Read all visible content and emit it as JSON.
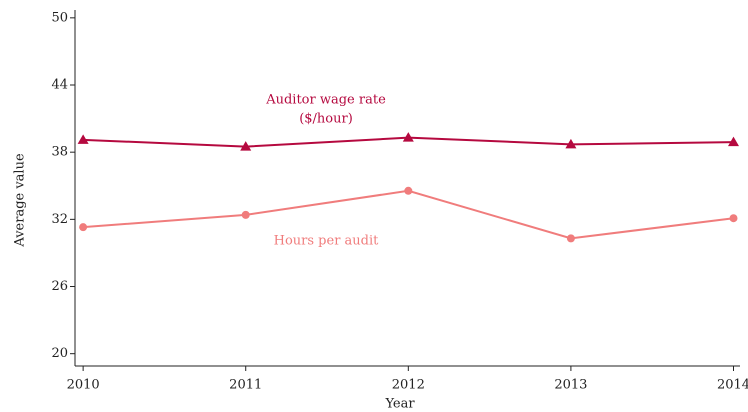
{
  "chart_data": {
    "type": "line",
    "x_label": "Year",
    "y_label": "Average value",
    "x": [
      2010,
      2011,
      2012,
      2013,
      2014
    ],
    "series": [
      {
        "name": "Auditor wage rate ($/hour)",
        "color": "#b5093f",
        "marker": "triangle",
        "values": [
          39.1,
          38.5,
          39.3,
          38.7,
          38.9
        ]
      },
      {
        "name": "Hours per audit",
        "color": "#f07c7c",
        "marker": "circle",
        "values": [
          31.3,
          32.4,
          34.55,
          30.3,
          32.1
        ]
      }
    ],
    "annotations": [
      "Auditor wage rate",
      "($/hour)",
      "Hours per audit"
    ],
    "xlim": [
      2009.95,
      2014.04
    ],
    "ylim": [
      18.9,
      50.7
    ],
    "xticks": [
      2010,
      2011,
      2012,
      2013,
      2014
    ],
    "yticks": [
      20,
      26,
      32,
      38,
      44,
      50
    ]
  }
}
